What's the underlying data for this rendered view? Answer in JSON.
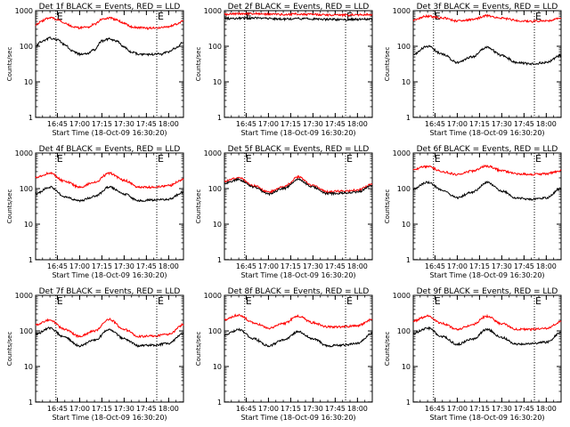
{
  "chart_data": [
    {
      "type": "line",
      "title": "Det 1f BLACK = Events, RED = LLD",
      "xlabel": "Start Time (18-Oct-09 16:30:20)",
      "ylabel": "Counts/sec",
      "yscale": "log",
      "ylim": [
        1,
        1000
      ],
      "xlim": [
        "16:30:20",
        "18:10:00"
      ],
      "x_ticks": [
        "16:45",
        "17:00",
        "17:15",
        "17:30",
        "17:45",
        "18:00"
      ],
      "y_ticks": [
        "1",
        "10",
        "100",
        "1000"
      ],
      "markers": [
        {
          "time": "16:44",
          "label": "E"
        },
        {
          "time": "17:52",
          "label": "E"
        }
      ],
      "series": [
        {
          "color": "#ff0000",
          "x": [
            "16:30",
            "16:35",
            "16:40",
            "16:45",
            "16:50",
            "16:55",
            "17:00",
            "17:05",
            "17:10",
            "17:15",
            "17:20",
            "17:25",
            "17:30",
            "17:35",
            "17:40",
            "17:45",
            "17:50",
            "17:55",
            "18:00",
            "18:05",
            "18:10"
          ],
          "values": [
            400,
            520,
            650,
            560,
            450,
            360,
            330,
            340,
            420,
            570,
            620,
            560,
            440,
            350,
            330,
            320,
            325,
            330,
            360,
            420,
            520
          ]
        },
        {
          "color": "#000000",
          "x": [
            "16:30",
            "16:35",
            "16:40",
            "16:45",
            "16:50",
            "16:55",
            "17:00",
            "17:05",
            "17:10",
            "17:15",
            "17:20",
            "17:25",
            "17:30",
            "17:35",
            "17:40",
            "17:45",
            "17:50",
            "17:55",
            "18:00",
            "18:05",
            "18:10"
          ],
          "values": [
            100,
            140,
            170,
            150,
            110,
            75,
            60,
            62,
            80,
            140,
            160,
            140,
            95,
            70,
            60,
            58,
            60,
            60,
            70,
            90,
            130
          ]
        }
      ]
    },
    {
      "type": "line",
      "title": "Det 2f BLACK = Events, RED = LLD",
      "xlabel": "Start Time (18-Oct-09 16:30:20)",
      "ylabel": "Counts/sec",
      "yscale": "log",
      "ylim": [
        1,
        1000
      ],
      "xlim": [
        "16:30:20",
        "18:10:00"
      ],
      "x_ticks": [
        "16:45",
        "17:00",
        "17:15",
        "17:30",
        "17:45",
        "18:00"
      ],
      "y_ticks": [
        "1",
        "10",
        "100",
        "1000"
      ],
      "markers": [
        {
          "time": "16:44",
          "label": "E"
        },
        {
          "time": "17:52",
          "label": "E"
        }
      ],
      "series": [
        {
          "color": "#ff0000",
          "x": [
            "16:30",
            "16:40",
            "16:50",
            "17:00",
            "17:10",
            "17:20",
            "17:30",
            "17:40",
            "17:50",
            "18:00",
            "18:10"
          ],
          "values": [
            800,
            820,
            830,
            800,
            780,
            810,
            780,
            760,
            750,
            760,
            780
          ]
        },
        {
          "color": "#000000",
          "x": [
            "16:30",
            "16:40",
            "16:50",
            "17:00",
            "17:10",
            "17:20",
            "17:30",
            "17:40",
            "17:50",
            "18:00",
            "18:10"
          ],
          "values": [
            600,
            610,
            620,
            600,
            580,
            600,
            580,
            570,
            560,
            570,
            580
          ]
        }
      ]
    },
    {
      "type": "line",
      "title": "Det 3f BLACK = Events, RED = LLD",
      "xlabel": "Start Time (18-Oct-09 16:30:20)",
      "ylabel": "Counts/sec",
      "yscale": "log",
      "ylim": [
        1,
        1000
      ],
      "xlim": [
        "16:30:20",
        "18:10:00"
      ],
      "x_ticks": [
        "16:45",
        "17:00",
        "17:15",
        "17:30",
        "17:45",
        "18:00"
      ],
      "y_ticks": [
        "1",
        "10",
        "100",
        "1000"
      ],
      "markers": [
        {
          "time": "16:44",
          "label": "E"
        },
        {
          "time": "17:52",
          "label": "E"
        }
      ],
      "series": [
        {
          "color": "#ff0000",
          "x": [
            "16:30",
            "16:40",
            "16:50",
            "17:00",
            "17:10",
            "17:20",
            "17:30",
            "17:40",
            "17:50",
            "18:00",
            "18:10"
          ],
          "values": [
            550,
            700,
            620,
            520,
            560,
            720,
            620,
            530,
            500,
            520,
            600
          ]
        },
        {
          "color": "#000000",
          "x": [
            "16:30",
            "16:40",
            "16:50",
            "17:00",
            "17:10",
            "17:20",
            "17:30",
            "17:40",
            "17:50",
            "18:00",
            "18:10"
          ],
          "values": [
            60,
            100,
            60,
            35,
            50,
            95,
            55,
            35,
            32,
            35,
            55
          ]
        }
      ]
    },
    {
      "type": "line",
      "title": "Det 4f BLACK = Events, RED = LLD",
      "xlabel": "Start Time (18-Oct-09 16:30:20)",
      "ylabel": "Counts/sec",
      "yscale": "log",
      "ylim": [
        1,
        1000
      ],
      "xlim": [
        "16:30:20",
        "18:10:00"
      ],
      "x_ticks": [
        "16:45",
        "17:00",
        "17:15",
        "17:30",
        "17:45",
        "18:00"
      ],
      "y_ticks": [
        "1",
        "10",
        "100",
        "1000"
      ],
      "markers": [
        {
          "time": "16:44",
          "label": "E"
        },
        {
          "time": "17:52",
          "label": "E"
        }
      ],
      "series": [
        {
          "color": "#ff0000",
          "x": [
            "16:30",
            "16:40",
            "16:50",
            "17:00",
            "17:10",
            "17:20",
            "17:30",
            "17:40",
            "17:50",
            "18:00",
            "18:10"
          ],
          "values": [
            200,
            270,
            160,
            110,
            150,
            270,
            170,
            110,
            110,
            120,
            180
          ]
        },
        {
          "color": "#000000",
          "x": [
            "16:30",
            "16:40",
            "16:50",
            "17:00",
            "17:10",
            "17:20",
            "17:30",
            "17:40",
            "17:50",
            "18:00",
            "18:10"
          ],
          "values": [
            70,
            110,
            60,
            45,
            60,
            110,
            70,
            45,
            48,
            50,
            80
          ]
        }
      ]
    },
    {
      "type": "line",
      "title": "Det 5f BLACK = Events, RED = LLD",
      "xlabel": "Start Time (18-Oct-09 16:30:20)",
      "ylabel": "Counts/sec",
      "yscale": "log",
      "ylim": [
        1,
        1000
      ],
      "xlim": [
        "16:30:20",
        "18:10:00"
      ],
      "x_ticks": [
        "16:45",
        "17:00",
        "17:15",
        "17:30",
        "17:45",
        "18:00"
      ],
      "y_ticks": [
        "1",
        "10",
        "100",
        "1000"
      ],
      "markers": [
        {
          "time": "16:44",
          "label": "E"
        },
        {
          "time": "17:52",
          "label": "E"
        }
      ],
      "series": [
        {
          "color": "#ff0000",
          "x": [
            "16:30",
            "16:40",
            "16:50",
            "17:00",
            "17:10",
            "17:20",
            "17:30",
            "17:40",
            "17:50",
            "18:00",
            "18:10"
          ],
          "values": [
            160,
            200,
            120,
            80,
            110,
            210,
            120,
            80,
            85,
            90,
            130
          ]
        },
        {
          "color": "#000000",
          "x": [
            "16:30",
            "16:40",
            "16:50",
            "17:00",
            "17:10",
            "17:20",
            "17:30",
            "17:40",
            "17:50",
            "18:00",
            "18:10"
          ],
          "values": [
            140,
            180,
            110,
            70,
            100,
            180,
            110,
            72,
            75,
            80,
            120
          ]
        }
      ]
    },
    {
      "type": "line",
      "title": "Det 6f BLACK = Events, RED = LLD",
      "xlabel": "Start Time (18-Oct-09 16:30:20)",
      "ylabel": "Counts/sec",
      "yscale": "log",
      "ylim": [
        1,
        1000
      ],
      "xlim": [
        "16:30:20",
        "18:10:00"
      ],
      "x_ticks": [
        "16:45",
        "17:00",
        "17:15",
        "17:30",
        "17:45",
        "18:00"
      ],
      "y_ticks": [
        "1",
        "10",
        "100",
        "1000"
      ],
      "markers": [
        {
          "time": "16:44",
          "label": "E"
        },
        {
          "time": "17:52",
          "label": "E"
        }
      ],
      "series": [
        {
          "color": "#ff0000",
          "x": [
            "16:30",
            "16:40",
            "16:50",
            "17:00",
            "17:10",
            "17:20",
            "17:30",
            "17:40",
            "17:50",
            "18:00",
            "18:10"
          ],
          "values": [
            350,
            420,
            300,
            250,
            310,
            430,
            320,
            260,
            250,
            260,
            320
          ]
        },
        {
          "color": "#000000",
          "x": [
            "16:30",
            "16:40",
            "16:50",
            "17:00",
            "17:10",
            "17:20",
            "17:30",
            "17:40",
            "17:50",
            "18:00",
            "18:10"
          ],
          "values": [
            100,
            150,
            90,
            55,
            80,
            150,
            85,
            55,
            50,
            55,
            100
          ]
        }
      ]
    },
    {
      "type": "line",
      "title": "Det 7f BLACK = Events, RED = LLD",
      "xlabel": "Start Time (18-Oct-09 16:30:20)",
      "ylabel": "Counts/sec",
      "yscale": "log",
      "ylim": [
        1,
        1000
      ],
      "xlim": [
        "16:30:20",
        "18:10:00"
      ],
      "x_ticks": [
        "16:45",
        "17:00",
        "17:15",
        "17:30",
        "17:45",
        "18:00"
      ],
      "y_ticks": [
        "1",
        "10",
        "100",
        "1000"
      ],
      "markers": [
        {
          "time": "16:44",
          "label": "E"
        },
        {
          "time": "17:52",
          "label": "E"
        }
      ],
      "series": [
        {
          "color": "#ff0000",
          "x": [
            "16:30",
            "16:40",
            "16:50",
            "17:00",
            "17:10",
            "17:20",
            "17:30",
            "17:40",
            "17:50",
            "18:00",
            "18:10"
          ],
          "values": [
            150,
            200,
            110,
            70,
            100,
            210,
            110,
            70,
            72,
            80,
            150
          ]
        },
        {
          "color": "#000000",
          "x": [
            "16:30",
            "16:40",
            "16:50",
            "17:00",
            "17:10",
            "17:20",
            "17:30",
            "17:40",
            "17:50",
            "18:00",
            "18:10"
          ],
          "values": [
            80,
            120,
            65,
            38,
            55,
            110,
            60,
            38,
            40,
            45,
            85
          ]
        }
      ]
    },
    {
      "type": "line",
      "title": "Det 8f BLACK = Events, RED = LLD",
      "xlabel": "Start Time (18-Oct-09 16:30:20)",
      "ylabel": "Counts/sec",
      "yscale": "log",
      "ylim": [
        1,
        1000
      ],
      "xlim": [
        "16:30:20",
        "18:10:00"
      ],
      "x_ticks": [
        "16:45",
        "17:00",
        "17:15",
        "17:30",
        "17:45",
        "18:00"
      ],
      "y_ticks": [
        "1",
        "10",
        "100",
        "1000"
      ],
      "markers": [
        {
          "time": "16:44",
          "label": "E"
        },
        {
          "time": "17:52",
          "label": "E"
        }
      ],
      "series": [
        {
          "color": "#ff0000",
          "x": [
            "16:30",
            "16:40",
            "16:50",
            "17:00",
            "17:10",
            "17:20",
            "17:30",
            "17:40",
            "17:50",
            "18:00",
            "18:10"
          ],
          "values": [
            210,
            280,
            170,
            120,
            160,
            260,
            170,
            130,
            130,
            140,
            210
          ]
        },
        {
          "color": "#000000",
          "x": [
            "16:30",
            "16:40",
            "16:50",
            "17:00",
            "17:10",
            "17:20",
            "17:30",
            "17:40",
            "17:50",
            "18:00",
            "18:10"
          ],
          "values": [
            75,
            110,
            60,
            38,
            55,
            95,
            60,
            38,
            40,
            45,
            85
          ]
        }
      ]
    },
    {
      "type": "line",
      "title": "Det 9f BLACK = Events, RED = LLD",
      "xlabel": "Start Time (18-Oct-09 16:30:20)",
      "ylabel": "Counts/sec",
      "yscale": "log",
      "ylim": [
        1,
        1000
      ],
      "xlim": [
        "16:30:20",
        "18:10:00"
      ],
      "x_ticks": [
        "16:45",
        "17:00",
        "17:15",
        "17:30",
        "17:45",
        "18:00"
      ],
      "y_ticks": [
        "1",
        "10",
        "100",
        "1000"
      ],
      "markers": [
        {
          "time": "16:44",
          "label": "E"
        },
        {
          "time": "17:52",
          "label": "E"
        }
      ],
      "series": [
        {
          "color": "#ff0000",
          "x": [
            "16:30",
            "16:40",
            "16:50",
            "17:00",
            "17:10",
            "17:20",
            "17:30",
            "17:40",
            "17:50",
            "18:00",
            "18:10"
          ],
          "values": [
            190,
            260,
            160,
            110,
            150,
            260,
            160,
            110,
            110,
            120,
            180
          ]
        },
        {
          "color": "#000000",
          "x": [
            "16:30",
            "16:40",
            "16:50",
            "17:00",
            "17:10",
            "17:20",
            "17:30",
            "17:40",
            "17:50",
            "18:00",
            "18:10"
          ],
          "values": [
            85,
            120,
            70,
            42,
            58,
            110,
            65,
            42,
            44,
            48,
            90
          ]
        }
      ]
    }
  ]
}
